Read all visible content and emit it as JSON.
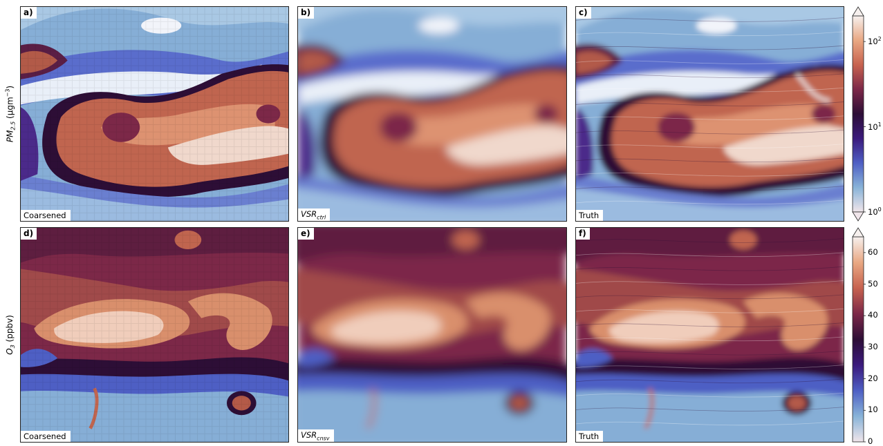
{
  "panels": [
    {
      "id": "a",
      "label": "a)",
      "caption": "Coarsened",
      "caption_sub": "",
      "variable": "pm25",
      "style": "coarse"
    },
    {
      "id": "b",
      "label": "b)",
      "caption": "VSR",
      "caption_sub": "ctrl",
      "variable": "pm25",
      "style": "smooth"
    },
    {
      "id": "c",
      "label": "c)",
      "caption": "Truth",
      "caption_sub": "",
      "variable": "pm25",
      "style": "detail"
    },
    {
      "id": "d",
      "label": "d)",
      "caption": "Coarsened",
      "caption_sub": "",
      "variable": "o3",
      "style": "coarse"
    },
    {
      "id": "e",
      "label": "e)",
      "caption": "VSR",
      "caption_sub": "cnsv",
      "variable": "o3",
      "style": "smooth"
    },
    {
      "id": "f",
      "label": "f)",
      "caption": "Truth",
      "caption_sub": "",
      "variable": "o3",
      "style": "detail"
    }
  ],
  "row_labels": {
    "pm25": {
      "main": "PM",
      "sub": "2.5",
      "unit_open": " (μgm",
      "unit_sup": "−3",
      "unit_close": ")"
    },
    "o3": {
      "main": "O",
      "sub": "3",
      "unit": " (ppbv)"
    }
  },
  "chart_data": [
    {
      "type": "heatmap",
      "variable": "PM2.5",
      "scale": "log",
      "range": [
        1,
        200
      ],
      "colorbar_ticks": [
        {
          "base": "10",
          "exp": "0",
          "value": 1
        },
        {
          "base": "10",
          "exp": "1",
          "value": 10
        },
        {
          "base": "10",
          "exp": "2",
          "value": 100
        }
      ],
      "extend": "both",
      "colormap": [
        "#f0e5ea",
        "#88b3d8",
        "#4e5fc4",
        "#3b1a7c",
        "#2d0e36",
        "#7c2848",
        "#c7624f",
        "#e9a883",
        "#f6f0ee"
      ]
    },
    {
      "type": "heatmap",
      "variable": "O3",
      "scale": "linear",
      "range": [
        0,
        65
      ],
      "colorbar_ticks": [
        {
          "label": "0",
          "value": 0
        },
        {
          "label": "10",
          "value": 10
        },
        {
          "label": "20",
          "value": 20
        },
        {
          "label": "30",
          "value": 30
        },
        {
          "label": "40",
          "value": 40
        },
        {
          "label": "50",
          "value": 50
        },
        {
          "label": "60",
          "value": 60
        }
      ],
      "extend": "max",
      "colormap": [
        "#f0e5ea",
        "#88b3d8",
        "#4e5fc4",
        "#3b1a7c",
        "#2d0e36",
        "#7c2848",
        "#c7624f",
        "#e9a883",
        "#f6f0ee"
      ]
    }
  ]
}
